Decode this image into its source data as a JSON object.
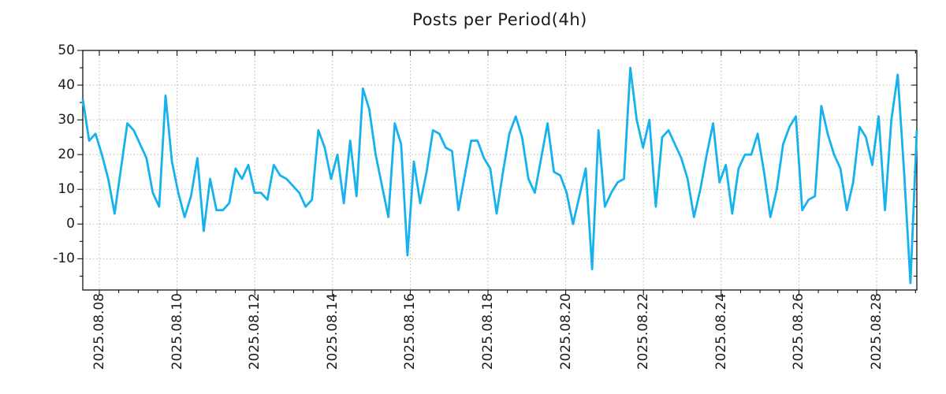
{
  "chart_data": {
    "type": "line",
    "title": "Posts per Period(4h)",
    "period_hours": 4,
    "line_color": "#15b2ee",
    "grid": true,
    "grid_style": "dotted",
    "legend": "none",
    "x_tick_labels": [
      "2025.08.08",
      "2025.08.10",
      "2025.08.12",
      "2025.08.14",
      "2025.08.16",
      "2025.08.18",
      "2025.08.20",
      "2025.08.22",
      "2025.08.24",
      "2025.08.26",
      "2025.08.28"
    ],
    "y_tick_labels": [
      "50",
      "40",
      "30",
      "20",
      "10",
      "0",
      "-10"
    ],
    "y_tick_values": [
      50,
      40,
      30,
      20,
      10,
      0,
      -10
    ],
    "ylim": [
      -19,
      50
    ],
    "values": [
      36,
      24,
      26,
      20,
      13,
      3,
      16,
      29,
      27,
      23,
      19,
      9,
      5,
      37,
      18,
      9,
      2,
      8,
      19,
      -2,
      13,
      4,
      4,
      6,
      16,
      13,
      17,
      9,
      9,
      7,
      17,
      14,
      13,
      11,
      9,
      5,
      7,
      27,
      22,
      13,
      20,
      6,
      24,
      8,
      39,
      33,
      20,
      11,
      2,
      29,
      23,
      -9,
      18,
      6,
      15,
      27,
      26,
      22,
      21,
      4,
      14,
      24,
      24,
      19,
      16,
      3,
      15,
      26,
      31,
      25,
      13,
      9,
      19,
      29,
      15,
      14,
      9,
      0,
      8,
      16,
      -13,
      27,
      5,
      9,
      12,
      13,
      45,
      30,
      22,
      30,
      5,
      25,
      27,
      23,
      19,
      13,
      2,
      10,
      20,
      29,
      12,
      17,
      3,
      16,
      20,
      20,
      26,
      15,
      2,
      10,
      23,
      28,
      31,
      4,
      7,
      8,
      34,
      26,
      20,
      16,
      4,
      12,
      28,
      25,
      17,
      31,
      4,
      30,
      43,
      15,
      -17,
      27
    ]
  }
}
